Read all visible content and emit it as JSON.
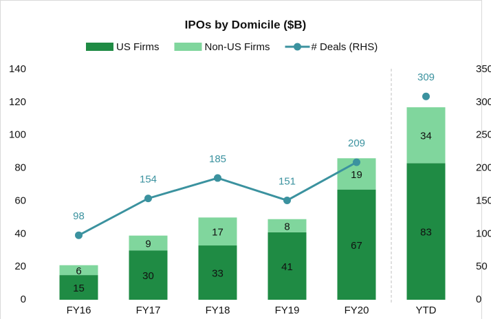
{
  "chart_data": {
    "type": "stacked_bar_line",
    "title": "IPOs by Domicile ($B)",
    "categories": [
      "FY16",
      "FY17",
      "FY18",
      "FY19",
      "FY20",
      "YTD"
    ],
    "series": [
      {
        "name": "US Firms",
        "color": "#1f8b44",
        "values": [
          15,
          30,
          33,
          41,
          67,
          83
        ]
      },
      {
        "name": "Non-US Firms",
        "color": "#80d69d",
        "values": [
          6,
          9,
          17,
          8,
          19,
          34
        ]
      },
      {
        "name": "# Deals (RHS)",
        "color": "#3b929f",
        "axis": "y2",
        "values": [
          98,
          154,
          185,
          151,
          209,
          309
        ]
      }
    ],
    "ylim": [
      0,
      140
    ],
    "yticks": [
      0,
      20,
      40,
      60,
      80,
      100,
      120,
      140
    ],
    "y2lim": [
      0,
      350
    ],
    "y2ticks": [
      0,
      50,
      100,
      150,
      200,
      250,
      300,
      350
    ]
  }
}
